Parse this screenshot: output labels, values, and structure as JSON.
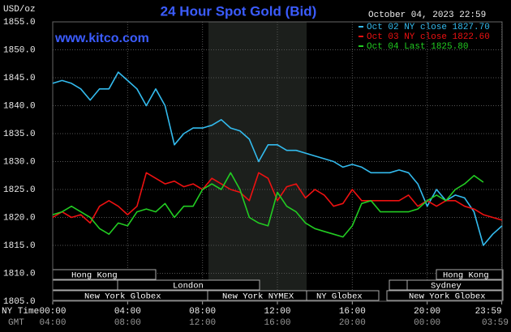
{
  "chart_data": {
    "type": "line",
    "title": "24 Hour Spot Gold (Bid)",
    "y_unit": "USD/oz",
    "timestamp": "October 04, 2023 22:59",
    "watermark": "www.kitco.com",
    "x_row_labels": [
      "NY Time",
      "GMT"
    ],
    "x": [
      0,
      0.5,
      1,
      1.5,
      2,
      2.5,
      3,
      3.5,
      4,
      4.5,
      5,
      5.5,
      6,
      6.5,
      7,
      7.5,
      8,
      8.5,
      9,
      9.5,
      10,
      10.5,
      11,
      11.5,
      12,
      12.5,
      13,
      13.5,
      14,
      14.5,
      15,
      15.5,
      16,
      16.5,
      17,
      17.5,
      18,
      18.5,
      19,
      19.5,
      20,
      20.5,
      21,
      21.5,
      22,
      22.5,
      23,
      23.5,
      24
    ],
    "series": [
      {
        "name": "Oct 02 NY close 1827.70",
        "color": "#33bbee",
        "values": [
          1844,
          1844.5,
          1844,
          1843,
          1841,
          1843,
          1843,
          1846,
          1844.5,
          1843,
          1840,
          1843,
          1840,
          1833,
          1835,
          1836,
          1836,
          1836.5,
          1837.5,
          1836,
          1835.5,
          1834,
          1830,
          1833,
          1833,
          1832,
          1832,
          1831.5,
          1831,
          1830.5,
          1830,
          1829,
          1829.5,
          1829,
          1828,
          1828,
          1828,
          1828.5,
          1828,
          1826,
          1822,
          1825,
          1823,
          1824,
          1823.5,
          1821,
          1815,
          1817,
          1818.5
        ]
      },
      {
        "name": "Oct 03 NY close 1822.60",
        "color": "#ee1111",
        "values": [
          1820,
          1821,
          1820,
          1820.5,
          1819,
          1822,
          1823,
          1822,
          1820.5,
          1822,
          1828,
          1827,
          1826,
          1826.5,
          1825.5,
          1826,
          1825,
          1827,
          1826,
          1825,
          1824.5,
          1823,
          1828,
          1827,
          1823,
          1825.5,
          1826,
          1823.5,
          1825,
          1824,
          1822,
          1822.5,
          1825,
          1823,
          1823,
          1823,
          1823,
          1823,
          1824,
          1822,
          1823,
          1822,
          1823,
          1823,
          1822,
          1821.5,
          1820.5,
          1820,
          1819.5
        ]
      },
      {
        "name": "Oct 04 Last 1825.80",
        "color": "#22cc22",
        "values": [
          1820.5,
          1821,
          1822,
          1821,
          1820,
          1818,
          1817,
          1819,
          1818.5,
          1821,
          1821.5,
          1821,
          1822.5,
          1820,
          1822,
          1822,
          1825,
          1826,
          1825,
          1828,
          1825,
          1820,
          1819,
          1818.5,
          1824.5,
          1822,
          1821,
          1819,
          1818,
          1817.5,
          1817,
          1816.5,
          1818.5,
          1822.5,
          1823,
          1821,
          1821,
          1821,
          1821,
          1821.5,
          1823,
          1824,
          1823,
          1825,
          1826,
          1827.5,
          1826.3,
          null,
          null
        ]
      }
    ],
    "xlim": [
      0,
      24
    ],
    "xticks": [
      {
        "value": 0,
        "label": "00:00"
      },
      {
        "value": 4,
        "label": "04:00"
      },
      {
        "value": 8,
        "label": "08:00"
      },
      {
        "value": 12,
        "label": "12:00"
      },
      {
        "value": 16,
        "label": "16:00"
      },
      {
        "value": 20,
        "label": "20:00"
      },
      {
        "value": 23.983,
        "label": "23:59"
      }
    ],
    "gmt_ticks": [
      "04:00",
      "08:00",
      "12:00",
      "16:00",
      "20:00",
      "00:00",
      "03:59"
    ],
    "ylim": [
      1805,
      1855
    ],
    "yticks": [
      {
        "value": 1805,
        "label": "1805.0"
      },
      {
        "value": 1810,
        "label": "1810.0"
      },
      {
        "value": 1815,
        "label": "1815.0"
      },
      {
        "value": 1820,
        "label": "1820.0"
      },
      {
        "value": 1825,
        "label": "1825.0"
      },
      {
        "value": 1830,
        "label": "1830.0"
      },
      {
        "value": 1835,
        "label": "1835.0"
      },
      {
        "value": 1840,
        "label": "1840.0"
      },
      {
        "value": 1845,
        "label": "1845.0"
      },
      {
        "value": 1850,
        "label": "1850.0"
      },
      {
        "value": 1855,
        "label": "1855.0"
      }
    ],
    "grid": true,
    "legend": "top-right",
    "sessions": [
      "Hong Kong",
      "London",
      "New York Globex",
      "New York NYMEX",
      "NY Globex",
      "Hong Kong",
      "Sydney",
      "New York Globex"
    ]
  }
}
